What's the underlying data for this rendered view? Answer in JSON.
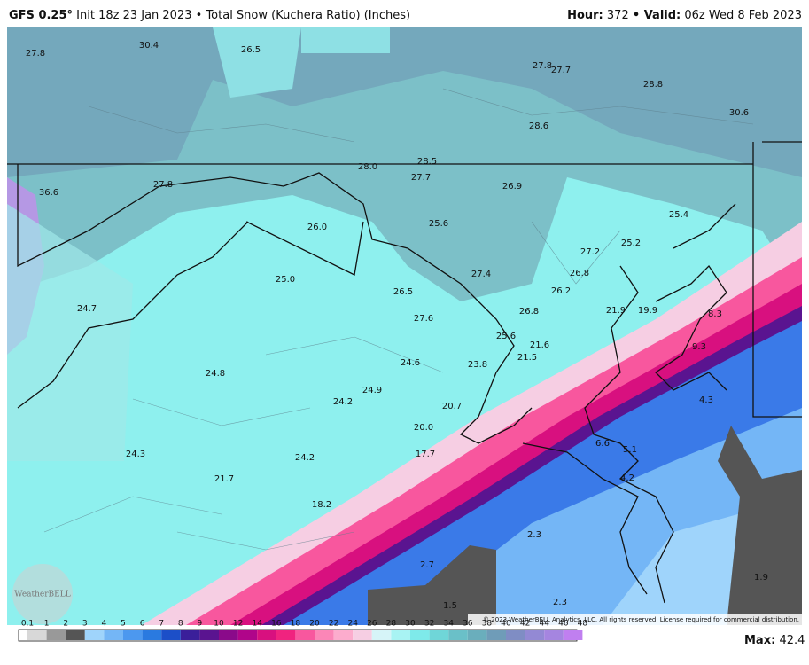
{
  "header": {
    "model": "GFS 0.25°",
    "init": "Init 18z 23 Jan 2023",
    "product": "• Total Snow (Kuchera Ratio) (Inches)",
    "hour_label": "Hour:",
    "hour": "372",
    "valid_label": "• Valid:",
    "valid": "06z Wed 8 Feb 2023"
  },
  "map": {
    "labels": [
      "27.8",
      "30.4",
      "26.5",
      "27.8",
      "27.7",
      "28.8",
      "30.6",
      "28.6",
      "28.0",
      "28.5",
      "36.6",
      "27.8",
      "27.7",
      "26.9",
      "25.4",
      "26.0",
      "25.6",
      "25.2",
      "27.2",
      "25.0",
      "26.8",
      "27.4",
      "26.5",
      "26.2",
      "24.7",
      "26.8",
      "21.9",
      "19.9",
      "8.3",
      "27.6",
      "25.6",
      "21.6",
      "9.3",
      "21.5",
      "24.6",
      "23.8",
      "24.8",
      "24.9",
      "4.3",
      "24.2",
      "20.7",
      "20.0",
      "6.6",
      "5.1",
      "24.3",
      "17.7",
      "24.2",
      "4.2",
      "21.7",
      "18.2",
      "2.3",
      "2.7",
      "1.9",
      "1.5",
      "2.3"
    ],
    "logo": "WeatherBELL",
    "copyright": "© 2023 WeatherBELL Analytics, LLC. All rights reserved. License required for commercial distribution."
  },
  "legend": {
    "ticks": [
      "0.1",
      "1",
      "2",
      "3",
      "4",
      "5",
      "6",
      "7",
      "8",
      "9",
      "10",
      "12",
      "14",
      "16",
      "18",
      "20",
      "22",
      "24",
      "26",
      "28",
      "30",
      "32",
      "34",
      "36",
      "38",
      "40",
      "42",
      "44",
      "46",
      "48"
    ],
    "colors": [
      "#d8d8d8",
      "#999999",
      "#555555",
      "#9fd4fb",
      "#74b6f6",
      "#4c98ef",
      "#2a7ae0",
      "#1c4fc8",
      "#3a1f9a",
      "#5a1490",
      "#8a0a8a",
      "#b0058a",
      "#d8107f",
      "#f0237f",
      "#f8579e",
      "#fb86b7",
      "#fcaccd",
      "#f6cee3",
      "#d6f4f8",
      "#a8f3f3",
      "#7eeaea",
      "#6fd6d8",
      "#6ac0c8",
      "#6aaebc",
      "#6f9cb8",
      "#7f8dc4",
      "#9389d4",
      "#a585e0",
      "#c07ff0"
    ],
    "max_label": "Max:",
    "max": "42.4"
  }
}
